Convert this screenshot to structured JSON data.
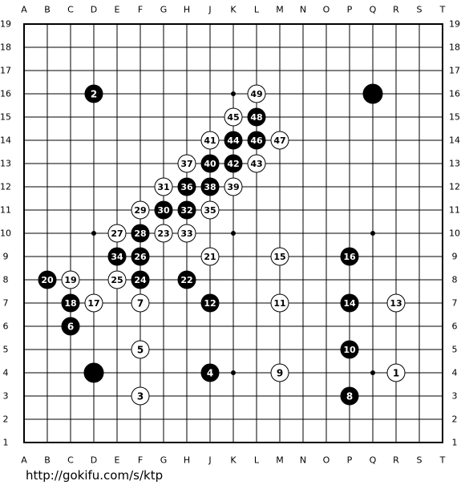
{
  "board": {
    "size": 19,
    "columns": [
      "A",
      "B",
      "C",
      "D",
      "E",
      "F",
      "G",
      "H",
      "J",
      "K",
      "L",
      "M",
      "N",
      "O",
      "P",
      "Q",
      "R",
      "S",
      "T"
    ],
    "rows": [
      "19",
      "18",
      "17",
      "16",
      "15",
      "14",
      "13",
      "12",
      "11",
      "10",
      "9",
      "8",
      "7",
      "6",
      "5",
      "4",
      "3",
      "2",
      "1"
    ],
    "star_points": [
      "D16",
      "K16",
      "Q16",
      "D10",
      "K10",
      "Q10",
      "D4",
      "K4",
      "Q4"
    ],
    "stones": [
      {
        "coord": "D16",
        "color": "black",
        "label": "2"
      },
      {
        "coord": "Q16",
        "color": "black",
        "label": ""
      },
      {
        "coord": "D4",
        "color": "black",
        "label": ""
      },
      {
        "coord": "R4",
        "color": "white",
        "label": "1"
      },
      {
        "coord": "J4",
        "color": "black",
        "label": "4"
      },
      {
        "coord": "F3",
        "color": "white",
        "label": "3"
      },
      {
        "coord": "F5",
        "color": "white",
        "label": "5"
      },
      {
        "coord": "C6",
        "color": "black",
        "label": "6"
      },
      {
        "coord": "F7",
        "color": "white",
        "label": "7"
      },
      {
        "coord": "P3",
        "color": "black",
        "label": "8"
      },
      {
        "coord": "M4",
        "color": "white",
        "label": "9"
      },
      {
        "coord": "P5",
        "color": "black",
        "label": "10"
      },
      {
        "coord": "M7",
        "color": "white",
        "label": "11"
      },
      {
        "coord": "J7",
        "color": "black",
        "label": "12"
      },
      {
        "coord": "R7",
        "color": "white",
        "label": "13"
      },
      {
        "coord": "P7",
        "color": "black",
        "label": "14"
      },
      {
        "coord": "M9",
        "color": "white",
        "label": "15"
      },
      {
        "coord": "P9",
        "color": "black",
        "label": "16"
      },
      {
        "coord": "D7",
        "color": "white",
        "label": "17"
      },
      {
        "coord": "C7",
        "color": "black",
        "label": "18"
      },
      {
        "coord": "C8",
        "color": "white",
        "label": "19"
      },
      {
        "coord": "B8",
        "color": "black",
        "label": "20"
      },
      {
        "coord": "J9",
        "color": "white",
        "label": "21"
      },
      {
        "coord": "H8",
        "color": "black",
        "label": "22"
      },
      {
        "coord": "G10",
        "color": "white",
        "label": "23"
      },
      {
        "coord": "F8",
        "color": "black",
        "label": "24"
      },
      {
        "coord": "E8",
        "color": "white",
        "label": "25"
      },
      {
        "coord": "F9",
        "color": "black",
        "label": "26"
      },
      {
        "coord": "E10",
        "color": "white",
        "label": "27"
      },
      {
        "coord": "F10",
        "color": "black",
        "label": "28"
      },
      {
        "coord": "F11",
        "color": "white",
        "label": "29"
      },
      {
        "coord": "G11",
        "color": "black",
        "label": "30"
      },
      {
        "coord": "G12",
        "color": "white",
        "label": "31"
      },
      {
        "coord": "H11",
        "color": "black",
        "label": "32"
      },
      {
        "coord": "H10",
        "color": "white",
        "label": "33"
      },
      {
        "coord": "E9",
        "color": "black",
        "label": "34"
      },
      {
        "coord": "J11",
        "color": "white",
        "label": "35"
      },
      {
        "coord": "H12",
        "color": "black",
        "label": "36"
      },
      {
        "coord": "H13",
        "color": "white",
        "label": "37"
      },
      {
        "coord": "J12",
        "color": "black",
        "label": "38"
      },
      {
        "coord": "K12",
        "color": "white",
        "label": "39"
      },
      {
        "coord": "J13",
        "color": "black",
        "label": "40"
      },
      {
        "coord": "J14",
        "color": "white",
        "label": "41"
      },
      {
        "coord": "K13",
        "color": "black",
        "label": "42"
      },
      {
        "coord": "L13",
        "color": "white",
        "label": "43"
      },
      {
        "coord": "K14",
        "color": "black",
        "label": "44"
      },
      {
        "coord": "K15",
        "color": "white",
        "label": "45"
      },
      {
        "coord": "L14",
        "color": "black",
        "label": "46"
      },
      {
        "coord": "M14",
        "color": "white",
        "label": "47"
      },
      {
        "coord": "L15",
        "color": "black",
        "label": "48"
      },
      {
        "coord": "L16",
        "color": "white",
        "label": "49"
      }
    ]
  },
  "footer": {
    "url": "http://gokifu.com/s/ktp"
  }
}
